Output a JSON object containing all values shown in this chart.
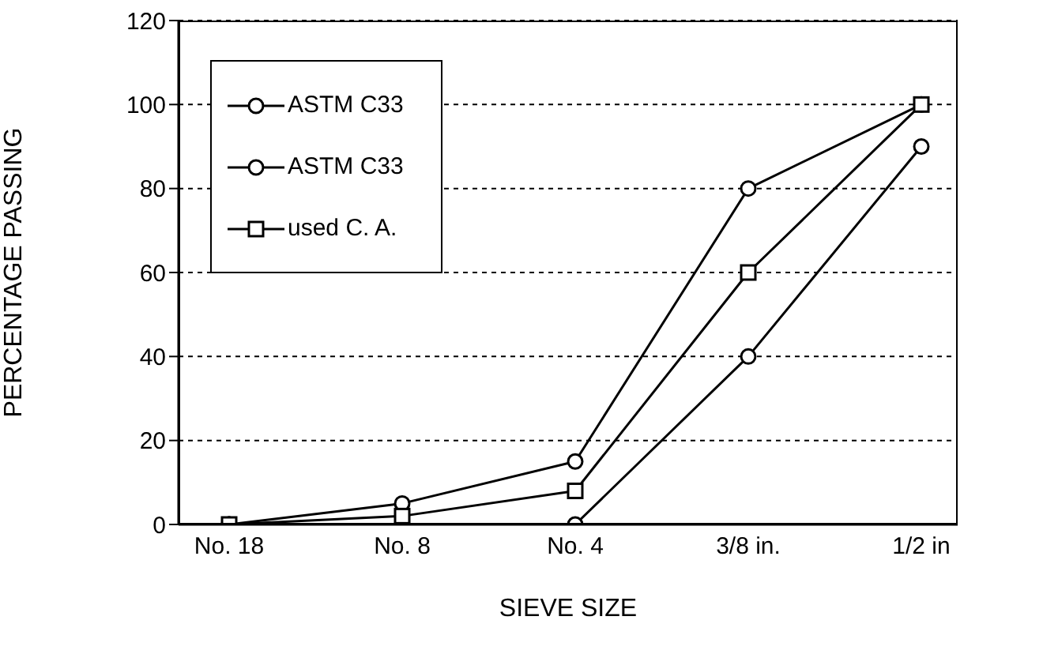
{
  "chart_data": {
    "type": "line",
    "xlabel": "SIEVE SIZE",
    "ylabel": "PERCENTAGE PASSING",
    "categories": [
      "No. 18",
      "No. 8",
      "No. 4",
      "3/8 in.",
      "1/2 in"
    ],
    "series": [
      {
        "name": "ASTM C33",
        "color": "#000000",
        "marker": "circle",
        "values": [
          0,
          5,
          15,
          80,
          100
        ]
      },
      {
        "name": "ASTM C33",
        "color": "#000000",
        "marker": "circle",
        "values": [
          0,
          0,
          0,
          40,
          90
        ]
      },
      {
        "name": "used C. A.",
        "color": "#000000",
        "marker": "square",
        "values": [
          0,
          2,
          8,
          60,
          100
        ]
      }
    ],
    "ylim": [
      0,
      120
    ],
    "yticks": [
      0,
      20,
      40,
      60,
      80,
      100,
      120
    ],
    "grid": "y",
    "legend": "top left",
    "line_style": "solid"
  }
}
